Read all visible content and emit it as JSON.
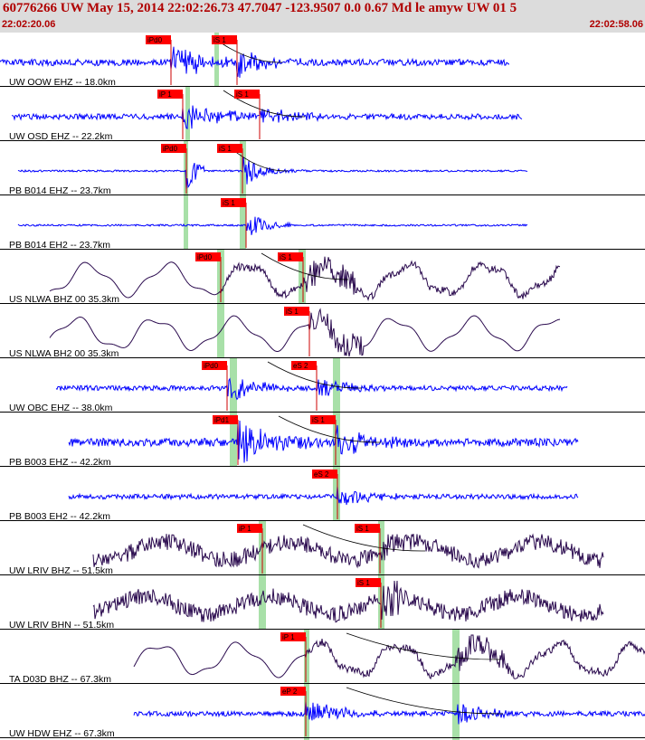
{
  "header": {
    "title": "60776266 UW May 15, 2014 22:02:26.73   47.7047 -123.9507  0.0 0.67 Md le amyw UW 01   5",
    "start_time": "22:02:20.06",
    "end_time": "22:02:58.06"
  },
  "colors": {
    "header_bg": "#dcdcdc",
    "header_text": "#b00000",
    "trace_short_period": "#0000ff",
    "trace_broadband": "#2a0a4e",
    "pick_box": "#ff0000",
    "pick_line": "#cc0000",
    "window_band": "#a8e0a8"
  },
  "traces": [
    {
      "label": "UW OOW EHZ -- 18.0km",
      "color": "blue",
      "picks": [
        "iPd0",
        "iS 1"
      ]
    },
    {
      "label": "UW OSD EHZ -- 22.2km",
      "color": "blue",
      "picks": [
        "iP 1",
        "iS 1"
      ]
    },
    {
      "label": "PB B014 EHZ -- 23.7km",
      "color": "blue",
      "picks": [
        "iPd0",
        "iS 1"
      ]
    },
    {
      "label": "PB B014 EH2 -- 23.7km",
      "color": "blue",
      "picks": [
        "iS 1"
      ]
    },
    {
      "label": "US NLWA BHZ 00 35.3km",
      "color": "purple",
      "picks": [
        "iPd0",
        "iS 1"
      ]
    },
    {
      "label": "US NLWA BH2 00 35.3km",
      "color": "purple",
      "picks": [
        "iS 1"
      ]
    },
    {
      "label": "UW OBC EHZ -- 38.0km",
      "color": "blue",
      "picks": [
        "iPd0",
        "eS 2"
      ]
    },
    {
      "label": "PB B003 EHZ -- 42.2km",
      "color": "blue",
      "picks": [
        "iPd1",
        "iS 1"
      ]
    },
    {
      "label": "PB B003 EH2 -- 42.2km",
      "color": "blue",
      "picks": [
        "eS 2"
      ]
    },
    {
      "label": "UW LRIV BHZ -- 51.5km",
      "color": "purple",
      "picks": [
        "iP 1",
        "iS 1"
      ]
    },
    {
      "label": "UW LRIV BHN -- 51.5km",
      "color": "purple",
      "picks": [
        "iS 1"
      ]
    },
    {
      "label": "TA D03D BHZ -- 67.3km",
      "color": "purple",
      "picks": [
        "iP 1"
      ]
    },
    {
      "label": "UW HDW EHZ -- 67.3km",
      "color": "blue",
      "picks": [
        "eP 2"
      ]
    }
  ]
}
